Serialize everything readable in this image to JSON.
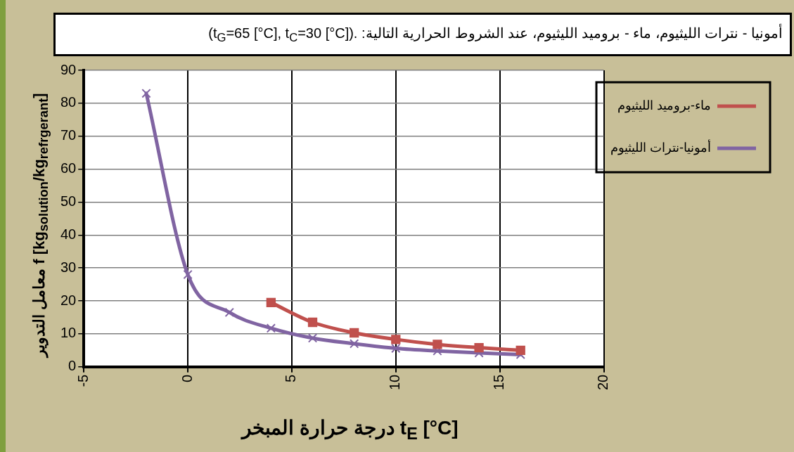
{
  "chart_data": {
    "type": "line",
    "title": "أمونيا - نترات الليثيوم، ماء - بروميد الليثيوم، عند الشروط الحرارية التالية: (t$_{G}$=65 [°C], t$_{C}$=30 [°C]).",
    "xlabel": "درجة حرارة المبخر t$_{E}$ [°C]",
    "ylabel": "معامل التدوير f [kg$_{solution}$/kg$_{refrgerant}$]",
    "series": [
      {
        "name": "ماء-بروميد الليثيوم",
        "color": "#c0504d",
        "marker": "square",
        "x": [
          4,
          6,
          8,
          10,
          12,
          14,
          16
        ],
        "values": [
          19.5,
          13.5,
          10.3,
          8.3,
          6.8,
          5.8,
          5.0
        ]
      },
      {
        "name": "أمونيا-نترات الليثيوم",
        "color": "#8064a2",
        "marker": "cross",
        "x": [
          -2,
          0,
          2,
          4,
          6,
          8,
          10,
          12,
          14,
          16
        ],
        "values": [
          83,
          28,
          16.5,
          11.7,
          8.7,
          7,
          5.6,
          4.8,
          4.2,
          3.7
        ]
      }
    ],
    "xlim": [
      -5,
      20
    ],
    "xticks": [
      -5,
      0,
      5,
      10,
      15,
      20
    ],
    "ylim": [
      0,
      90
    ],
    "yticks": [
      0,
      10,
      20,
      30,
      40,
      50,
      60,
      70,
      80,
      90
    ],
    "grid": true,
    "legend": "top right",
    "line_style": "solid"
  }
}
